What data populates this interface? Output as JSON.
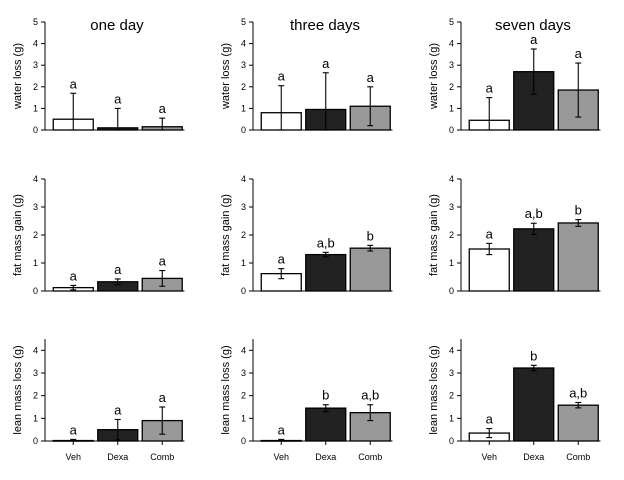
{
  "colors": {
    "veh": "#ffffff",
    "dexa": "#222222",
    "comb": "#999999",
    "stroke": "#000000"
  },
  "chart_data": [
    {
      "type": "bar",
      "title": "one day",
      "ylabel": "water loss (g)",
      "ylim": [
        0,
        5
      ],
      "yticks": [
        0,
        1,
        2,
        3,
        4,
        5
      ],
      "categories": [
        "Veh",
        "Dexa",
        "Comb"
      ],
      "show_xticklabels": false,
      "values": [
        0.5,
        0.1,
        0.15
      ],
      "errors": [
        1.2,
        0.9,
        0.4
      ],
      "labels": [
        "a",
        "a",
        "a"
      ]
    },
    {
      "type": "bar",
      "title": "three days",
      "ylabel": "water loss (g)",
      "ylim": [
        0,
        5
      ],
      "yticks": [
        0,
        1,
        2,
        3,
        4,
        5
      ],
      "categories": [
        "Veh",
        "Dexa",
        "Comb"
      ],
      "show_xticklabels": false,
      "values": [
        0.8,
        0.95,
        1.1
      ],
      "errors": [
        1.25,
        1.7,
        0.9
      ],
      "labels": [
        "a",
        "a",
        "a"
      ]
    },
    {
      "type": "bar",
      "title": "seven days",
      "ylabel": "water loss (g)",
      "ylim": [
        0,
        5
      ],
      "yticks": [
        0,
        1,
        2,
        3,
        4,
        5
      ],
      "categories": [
        "Veh",
        "Dexa",
        "Comb"
      ],
      "show_xticklabels": false,
      "values": [
        0.45,
        2.7,
        1.85
      ],
      "errors": [
        1.05,
        1.05,
        1.25
      ],
      "labels": [
        "a",
        "a",
        "a"
      ]
    },
    {
      "type": "bar",
      "title": "",
      "ylabel": "fat mass gain (g)",
      "ylim": [
        0,
        4
      ],
      "yticks": [
        0,
        1,
        2,
        3,
        4
      ],
      "categories": [
        "Veh",
        "Dexa",
        "Comb"
      ],
      "show_xticklabels": false,
      "values": [
        0.12,
        0.33,
        0.45
      ],
      "errors": [
        0.08,
        0.1,
        0.28
      ],
      "labels": [
        "a",
        "a",
        "a"
      ]
    },
    {
      "type": "bar",
      "title": "",
      "ylabel": "fat mass gain (g)",
      "ylim": [
        0,
        4
      ],
      "yticks": [
        0,
        1,
        2,
        3,
        4
      ],
      "categories": [
        "Veh",
        "Dexa",
        "Comb"
      ],
      "show_xticklabels": false,
      "values": [
        0.62,
        1.3,
        1.53
      ],
      "errors": [
        0.18,
        0.08,
        0.1
      ],
      "labels": [
        "a",
        "a,b",
        "b"
      ]
    },
    {
      "type": "bar",
      "title": "",
      "ylabel": "fat mass gain (g)",
      "ylim": [
        0,
        4
      ],
      "yticks": [
        0,
        1,
        2,
        3,
        4
      ],
      "categories": [
        "Veh",
        "Dexa",
        "Comb"
      ],
      "show_xticklabels": false,
      "values": [
        1.5,
        2.22,
        2.43
      ],
      "errors": [
        0.2,
        0.2,
        0.12
      ],
      "labels": [
        "a",
        "a,b",
        "b"
      ]
    },
    {
      "type": "bar",
      "title": "",
      "ylabel": "lean mass loss (g)",
      "ylim": [
        0,
        4.5
      ],
      "yticks": [
        0,
        1,
        2,
        3,
        4
      ],
      "categories": [
        "Veh",
        "Dexa",
        "Comb"
      ],
      "show_xticklabels": true,
      "values": [
        0.02,
        0.5,
        0.9
      ],
      "errors": [
        0.05,
        0.45,
        0.6
      ],
      "labels": [
        "a",
        "a",
        "a"
      ]
    },
    {
      "type": "bar",
      "title": "",
      "ylabel": "lean mass loss (g)",
      "ylim": [
        0,
        4.5
      ],
      "yticks": [
        0,
        1,
        2,
        3,
        4
      ],
      "categories": [
        "Veh",
        "Dexa",
        "Comb"
      ],
      "show_xticklabels": true,
      "values": [
        0.02,
        1.45,
        1.25
      ],
      "errors": [
        0.05,
        0.15,
        0.35
      ],
      "labels": [
        "a",
        "b",
        "a,b"
      ]
    },
    {
      "type": "bar",
      "title": "",
      "ylabel": "lean mass loss (g)",
      "ylim": [
        0,
        4.5
      ],
      "yticks": [
        0,
        1,
        2,
        3,
        4
      ],
      "categories": [
        "Veh",
        "Dexa",
        "Comb"
      ],
      "show_xticklabels": true,
      "values": [
        0.35,
        3.22,
        1.58
      ],
      "errors": [
        0.2,
        0.12,
        0.12
      ],
      "labels": [
        "a",
        "b",
        "a,b"
      ]
    }
  ]
}
